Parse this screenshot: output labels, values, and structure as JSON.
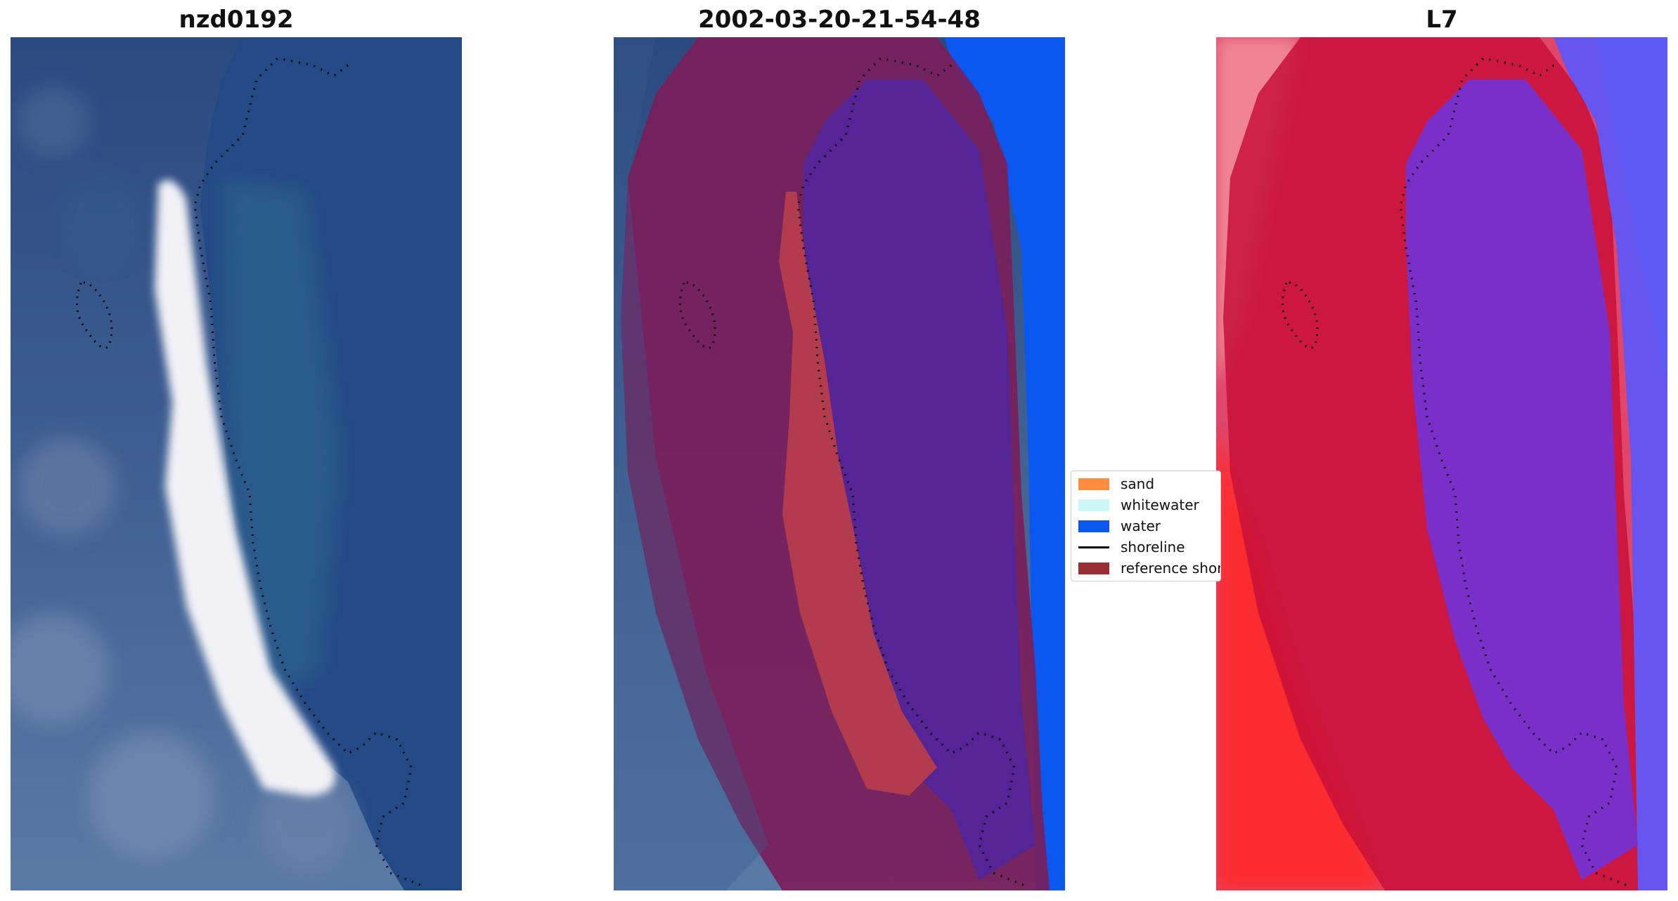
{
  "panels": [
    {
      "title": "nzd0192"
    },
    {
      "title": "2002-03-20-21-54-48"
    },
    {
      "title": "L7"
    }
  ],
  "legend": {
    "items": [
      {
        "label": "sand",
        "color": "#ff8c3f",
        "kind": "patch"
      },
      {
        "label": "whitewater",
        "color": "#cbf7f7",
        "kind": "patch"
      },
      {
        "label": "water",
        "color": "#0a58f0",
        "kind": "patch"
      },
      {
        "label": "shoreline",
        "color": "#000000",
        "kind": "line"
      },
      {
        "label": "reference shoreline buffer",
        "color": "#9a3036",
        "kind": "patch"
      }
    ]
  },
  "colors": {
    "ocean": "#244a86",
    "land": "#4a6896",
    "beach": "#f2f1f6",
    "buffer": "#7a1e5a",
    "classified_sand": "#b23b4d",
    "classified_water": "#552495",
    "open_water": "#0a58f0",
    "index_red": "#c8103a",
    "index_blue": "#6655ee"
  }
}
